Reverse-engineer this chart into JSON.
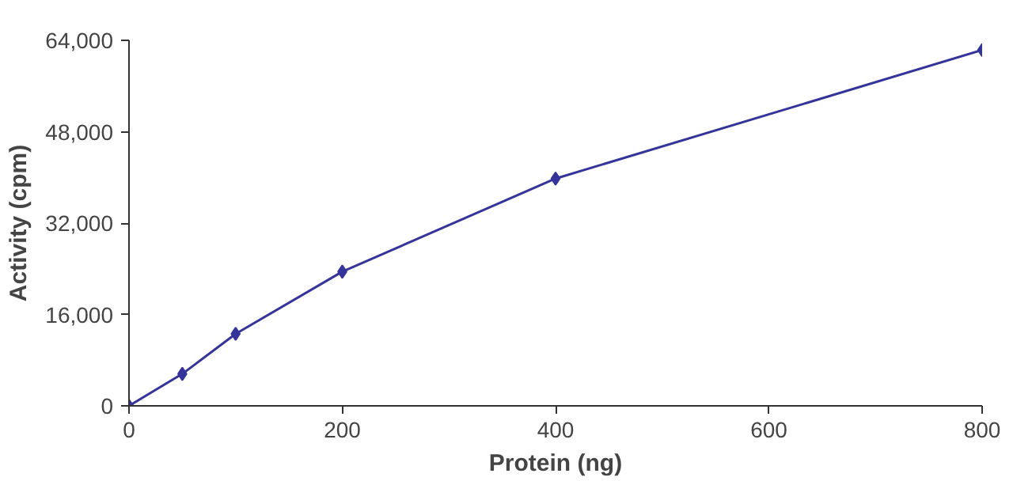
{
  "chart_data": {
    "type": "line",
    "xlabel": "Protein (ng)",
    "ylabel": "Activity (cpm)",
    "x": [
      0,
      50,
      100,
      200,
      400,
      800
    ],
    "series": [
      {
        "color": "#34349a",
        "values": [
          0,
          5600,
          12600,
          23500,
          39800,
          62300
        ]
      }
    ],
    "xlim": [
      0,
      800
    ],
    "ylim": [
      0,
      64000
    ],
    "xticks": [
      0,
      200,
      400,
      600,
      800
    ],
    "yticks": [
      {
        "value": 0,
        "label": "0"
      },
      {
        "value": 16000,
        "label": "16,000"
      },
      {
        "value": 32000,
        "label": "32,000"
      },
      {
        "value": 48000,
        "label": "48,000"
      },
      {
        "value": 64000,
        "label": "64,000"
      }
    ],
    "grid": false,
    "marker": "diamond",
    "line_style": "solid"
  }
}
